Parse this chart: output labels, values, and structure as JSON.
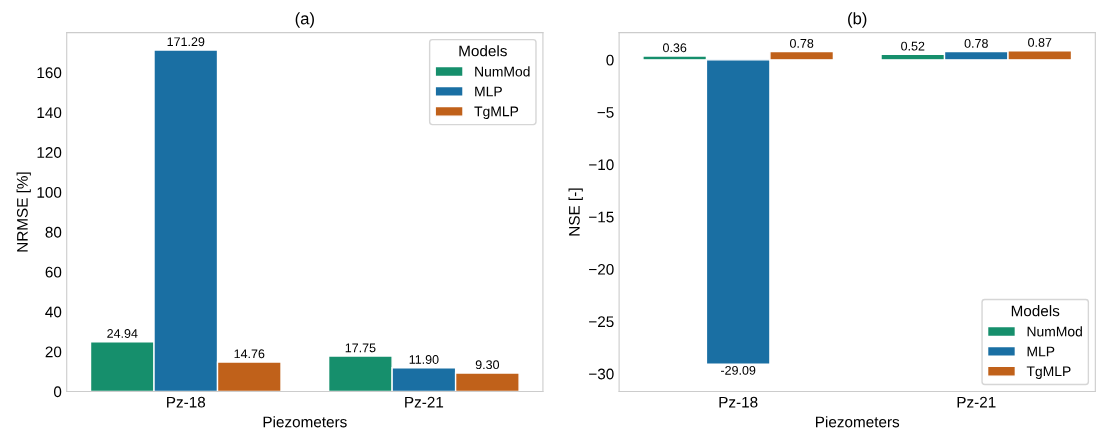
{
  "chart_data": [
    {
      "type": "bar",
      "title": "(a)",
      "xlabel": "Piezometers",
      "ylabel": "NRMSE [%]",
      "categories": [
        "Pz-18",
        "Pz-21"
      ],
      "series": [
        {
          "name": "NumMod",
          "color": "#168f6c",
          "values": [
            24.94,
            17.75
          ],
          "value_labels": [
            "24.94",
            "17.75"
          ]
        },
        {
          "name": "MLP",
          "color": "#1a6fa3",
          "values": [
            171.29,
            11.9
          ],
          "value_labels": [
            "171.29",
            "11.90"
          ]
        },
        {
          "name": "TgMLP",
          "color": "#c0611a",
          "values": [
            14.76,
            9.3
          ],
          "value_labels": [
            "14.76",
            "9.30"
          ]
        }
      ],
      "ylim": [
        0,
        180
      ],
      "yticks": [
        0,
        20,
        40,
        60,
        80,
        100,
        120,
        140,
        160
      ],
      "legend": "top right",
      "legend_title": "Models",
      "grid": false
    },
    {
      "type": "bar",
      "title": "(b)",
      "xlabel": "Piezometers",
      "ylabel": "NSE [-]",
      "categories": [
        "Pz-18",
        "Pz-21"
      ],
      "series": [
        {
          "name": "NumMod",
          "color": "#168f6c",
          "values": [
            0.36,
            0.52
          ],
          "value_labels": [
            "0.36",
            "0.52"
          ]
        },
        {
          "name": "MLP",
          "color": "#1a6fa3",
          "values": [
            -29.09,
            0.78
          ],
          "value_labels": [
            "-29.09",
            "0.78"
          ]
        },
        {
          "name": "TgMLP",
          "color": "#c0611a",
          "values": [
            0.78,
            0.87
          ],
          "value_labels": [
            "0.78",
            "0.87"
          ]
        }
      ],
      "ylim": [
        -31.7,
        2.6
      ],
      "yticks": [
        {
          "value": -30,
          "label": "−30"
        },
        {
          "value": -25,
          "label": "−25"
        },
        {
          "value": -20,
          "label": "−20"
        },
        {
          "value": -15,
          "label": "−15"
        },
        {
          "value": -10,
          "label": "−10"
        },
        {
          "value": -5,
          "label": "−5"
        },
        0
      ],
      "legend": "bottom right",
      "legend_title": "Models",
      "grid": false
    }
  ]
}
